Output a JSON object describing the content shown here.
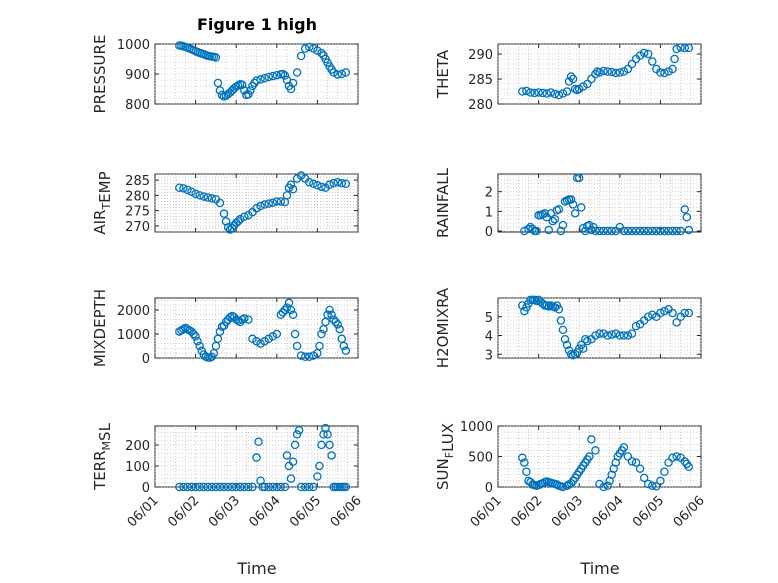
{
  "figure": {
    "title": "Figure 1 high",
    "xlabel": "Time"
  },
  "colors": {
    "marker": "#0072bd",
    "axis": "#262626",
    "grid": "#b0b0b0"
  },
  "chart_data": [
    {
      "type": "scatter",
      "id": "pressure",
      "title": "Figure 1 high",
      "ylabel_parts": [
        {
          "t": "PRESSURE"
        }
      ],
      "ylim": [
        800,
        1000
      ],
      "yticks": [
        800,
        900,
        1000
      ],
      "ytick_labels": [
        "800",
        "900",
        "1000"
      ],
      "xlim": [
        "06/01",
        "06/06"
      ],
      "xticks": [
        "06/01",
        "06/02",
        "06/03",
        "06/04",
        "06/05",
        "06/06"
      ],
      "xtick_labels_visible": false,
      "grid": true,
      "marker": "circle",
      "x": [
        1.6,
        1.65,
        1.7,
        1.75,
        1.8,
        1.85,
        1.9,
        1.95,
        2.0,
        2.05,
        2.1,
        2.15,
        2.2,
        2.25,
        2.3,
        2.35,
        2.4,
        2.45,
        2.5,
        2.55,
        2.6,
        2.65,
        2.7,
        2.75,
        2.8,
        2.85,
        2.9,
        2.95,
        3.0,
        3.05,
        3.1,
        3.15,
        3.2,
        3.25,
        3.3,
        3.35,
        3.4,
        3.45,
        3.5,
        3.6,
        3.7,
        3.8,
        3.9,
        4.0,
        4.1,
        4.15,
        4.2,
        4.25,
        4.3,
        4.35,
        4.4,
        4.5,
        4.6,
        4.7,
        4.8,
        4.9,
        5.0,
        5.1,
        5.15,
        5.2,
        5.25,
        5.3,
        5.35,
        5.4,
        5.5,
        5.6,
        5.7
      ],
      "y": [
        995,
        994,
        992,
        990,
        988,
        985,
        982,
        979,
        976,
        973,
        970,
        968,
        966,
        963,
        961,
        959,
        958,
        957,
        955,
        870,
        845,
        830,
        825,
        828,
        833,
        838,
        845,
        852,
        858,
        862,
        866,
        864,
        845,
        830,
        832,
        845,
        860,
        870,
        878,
        882,
        886,
        890,
        893,
        896,
        899,
        900,
        895,
        880,
        860,
        850,
        870,
        905,
        960,
        985,
        990,
        985,
        978,
        970,
        962,
        950,
        938,
        925,
        915,
        905,
        898,
        900,
        905
      ]
    },
    {
      "type": "scatter",
      "id": "theta",
      "ylabel_parts": [
        {
          "t": "THETA"
        }
      ],
      "ylim": [
        280,
        292
      ],
      "yticks": [
        280,
        285,
        290
      ],
      "ytick_labels": [
        "280",
        "285",
        "290"
      ],
      "xlim": [
        "06/01",
        "06/06"
      ],
      "xticks": [
        "06/01",
        "06/02",
        "06/03",
        "06/04",
        "06/05",
        "06/06"
      ],
      "xtick_labels_visible": false,
      "grid": true,
      "marker": "circle",
      "x": [
        1.6,
        1.7,
        1.8,
        1.9,
        2.0,
        2.1,
        2.2,
        2.3,
        2.4,
        2.5,
        2.6,
        2.7,
        2.75,
        2.8,
        2.85,
        2.9,
        2.95,
        3.0,
        3.1,
        3.2,
        3.3,
        3.4,
        3.45,
        3.5,
        3.6,
        3.7,
        3.8,
        3.9,
        4.0,
        4.1,
        4.2,
        4.3,
        4.4,
        4.5,
        4.6,
        4.7,
        4.8,
        4.9,
        5.0,
        5.1,
        5.2,
        5.3,
        5.35,
        5.4,
        5.5,
        5.6,
        5.7
      ],
      "y": [
        282.5,
        282.6,
        282.3,
        282.2,
        282.3,
        282.2,
        282.1,
        282.3,
        282.0,
        281.8,
        282.1,
        282.5,
        284.5,
        285.5,
        285.0,
        283.0,
        282.8,
        283.0,
        283.5,
        284.0,
        285.0,
        286.0,
        286.5,
        286.3,
        286.6,
        286.5,
        286.4,
        286.2,
        286.3,
        286.5,
        287.0,
        288.0,
        289.0,
        289.7,
        290.2,
        290.0,
        288.5,
        287.0,
        286.3,
        286.2,
        286.5,
        287.0,
        289.0,
        291.0,
        291.3,
        291.2,
        291.2
      ]
    },
    {
      "type": "scatter",
      "id": "air_temp",
      "ylabel_parts": [
        {
          "t": "AIR"
        },
        {
          "t": "T",
          "sub": true
        },
        {
          "t": "EMP"
        }
      ],
      "ylim": [
        268,
        287
      ],
      "yticks": [
        270,
        275,
        280,
        285
      ],
      "ytick_labels": [
        "270",
        "275",
        "280",
        "285"
      ],
      "xlim": [
        "06/01",
        "06/06"
      ],
      "xticks": [
        "06/01",
        "06/02",
        "06/03",
        "06/04",
        "06/05",
        "06/06"
      ],
      "xtick_labels_visible": false,
      "grid": true,
      "marker": "circle",
      "x": [
        1.6,
        1.7,
        1.8,
        1.9,
        2.0,
        2.1,
        2.2,
        2.3,
        2.4,
        2.5,
        2.6,
        2.7,
        2.75,
        2.8,
        2.85,
        2.9,
        2.95,
        3.0,
        3.05,
        3.1,
        3.2,
        3.3,
        3.4,
        3.5,
        3.6,
        3.7,
        3.8,
        3.9,
        4.0,
        4.1,
        4.2,
        4.25,
        4.3,
        4.35,
        4.4,
        4.5,
        4.6,
        4.7,
        4.8,
        4.9,
        5.0,
        5.1,
        5.2,
        5.3,
        5.4,
        5.5,
        5.6,
        5.7
      ],
      "y": [
        282.5,
        282.3,
        281.8,
        281.2,
        280.5,
        280.0,
        279.6,
        279.3,
        279.0,
        278.7,
        277.5,
        274.0,
        271.5,
        269.5,
        268.8,
        269.3,
        270.2,
        271.0,
        271.5,
        272.2,
        273.0,
        273.5,
        274.5,
        275.8,
        276.5,
        277.0,
        277.3,
        277.6,
        278.0,
        278.0,
        277.8,
        280.0,
        282.5,
        283.5,
        282.0,
        285.5,
        286.5,
        285.5,
        284.3,
        283.8,
        283.3,
        282.8,
        282.5,
        283.5,
        284.0,
        284.3,
        284.0,
        283.8
      ]
    },
    {
      "type": "scatter",
      "id": "rainfall",
      "ylabel_parts": [
        {
          "t": "RAINFALL"
        }
      ],
      "ylim": [
        -0.05,
        2.9
      ],
      "yticks": [
        0,
        1,
        2
      ],
      "ytick_labels": [
        "0",
        "1",
        "2"
      ],
      "xlim": [
        "06/01",
        "06/06"
      ],
      "xticks": [
        "06/01",
        "06/02",
        "06/03",
        "06/04",
        "06/05",
        "06/06"
      ],
      "xtick_labels_visible": false,
      "grid": true,
      "marker": "circle",
      "x": [
        1.65,
        1.75,
        1.8,
        1.85,
        1.9,
        1.95,
        2.0,
        2.05,
        2.1,
        2.15,
        2.2,
        2.25,
        2.3,
        2.35,
        2.4,
        2.45,
        2.5,
        2.55,
        2.6,
        2.65,
        2.7,
        2.75,
        2.8,
        2.85,
        2.9,
        2.95,
        3.0,
        3.05,
        3.1,
        3.15,
        3.2,
        3.25,
        3.3,
        3.35,
        3.4,
        3.5,
        3.6,
        3.7,
        3.8,
        3.9,
        4.0,
        4.1,
        4.2,
        4.3,
        4.4,
        4.5,
        4.6,
        4.7,
        4.8,
        4.9,
        5.0,
        5.1,
        5.2,
        5.3,
        5.4,
        5.5,
        5.6,
        5.65,
        5.7
      ],
      "y": [
        0,
        0.1,
        0.2,
        0.1,
        0,
        0,
        0.8,
        0.8,
        0.85,
        0.9,
        0.7,
        0.05,
        0.9,
        0.5,
        0.6,
        1.05,
        1.1,
        0,
        0.3,
        1.5,
        1.55,
        1.6,
        1.6,
        1.35,
        0.9,
        2.7,
        2.7,
        1.2,
        0.15,
        0,
        0.25,
        0.3,
        0.05,
        0.2,
        0,
        0,
        0,
        0,
        0,
        0,
        0.2,
        0,
        0,
        0,
        0,
        0,
        0,
        0,
        0,
        0,
        0,
        0,
        0,
        0,
        0,
        0,
        1.1,
        0.7,
        0.05
      ]
    },
    {
      "type": "scatter",
      "id": "mixdepth",
      "ylabel_parts": [
        {
          "t": "MIXDEPTH"
        }
      ],
      "ylim": [
        0,
        2500
      ],
      "yticks": [
        0,
        1000,
        2000
      ],
      "ytick_labels": [
        "0",
        "1000",
        "2000"
      ],
      "xlim": [
        "06/01",
        "06/06"
      ],
      "xticks": [
        "06/01",
        "06/02",
        "06/03",
        "06/04",
        "06/05",
        "06/06"
      ],
      "xtick_labels_visible": false,
      "grid": true,
      "marker": "circle",
      "x": [
        1.6,
        1.65,
        1.7,
        1.75,
        1.8,
        1.85,
        1.9,
        1.95,
        2.0,
        2.05,
        2.1,
        2.15,
        2.2,
        2.25,
        2.3,
        2.35,
        2.4,
        2.45,
        2.5,
        2.55,
        2.6,
        2.65,
        2.7,
        2.75,
        2.8,
        2.85,
        2.9,
        2.95,
        3.0,
        3.05,
        3.1,
        3.15,
        3.2,
        3.3,
        3.4,
        3.5,
        3.6,
        3.7,
        3.8,
        3.9,
        4.0,
        4.1,
        4.15,
        4.2,
        4.25,
        4.3,
        4.35,
        4.4,
        4.45,
        4.5,
        4.6,
        4.7,
        4.8,
        4.9,
        5.0,
        5.05,
        5.1,
        5.15,
        5.2,
        5.25,
        5.3,
        5.35,
        5.4,
        5.45,
        5.5,
        5.55,
        5.6,
        5.65,
        5.7
      ],
      "y": [
        1100,
        1150,
        1200,
        1250,
        1200,
        1150,
        1100,
        1000,
        900,
        700,
        500,
        300,
        150,
        50,
        20,
        10,
        50,
        200,
        500,
        800,
        1100,
        1300,
        1350,
        1500,
        1600,
        1700,
        1750,
        1700,
        1600,
        1550,
        1500,
        1600,
        1650,
        1600,
        800,
        700,
        600,
        700,
        800,
        900,
        1000,
        1800,
        1900,
        2000,
        2100,
        2300,
        2000,
        1800,
        1000,
        500,
        100,
        50,
        50,
        100,
        200,
        500,
        1000,
        1200,
        1500,
        1800,
        2000,
        1800,
        1600,
        1500,
        1400,
        1200,
        800,
        500,
        300
      ]
    },
    {
      "type": "scatter",
      "id": "h2omixra",
      "ylabel_parts": [
        {
          "t": "H2OMIXRA"
        }
      ],
      "ylim": [
        2.8,
        6.0
      ],
      "yticks": [
        3,
        4,
        5
      ],
      "ytick_labels": [
        "3",
        "4",
        "5"
      ],
      "xlim": [
        "06/01",
        "06/06"
      ],
      "xticks": [
        "06/01",
        "06/02",
        "06/03",
        "06/04",
        "06/05",
        "06/06"
      ],
      "xtick_labels_visible": false,
      "grid": true,
      "marker": "circle",
      "x": [
        1.6,
        1.65,
        1.7,
        1.75,
        1.8,
        1.85,
        1.9,
        1.95,
        2.0,
        2.05,
        2.1,
        2.15,
        2.2,
        2.25,
        2.3,
        2.35,
        2.4,
        2.45,
        2.5,
        2.55,
        2.6,
        2.65,
        2.7,
        2.75,
        2.8,
        2.85,
        2.9,
        2.95,
        3.0,
        3.05,
        3.1,
        3.15,
        3.2,
        3.3,
        3.4,
        3.5,
        3.6,
        3.7,
        3.8,
        3.9,
        4.0,
        4.1,
        4.2,
        4.3,
        4.4,
        4.5,
        4.6,
        4.7,
        4.8,
        4.9,
        5.0,
        5.1,
        5.2,
        5.3,
        5.4,
        5.5,
        5.6,
        5.7
      ],
      "y": [
        5.6,
        5.3,
        5.5,
        5.7,
        5.9,
        5.9,
        5.9,
        5.85,
        5.9,
        5.8,
        5.7,
        5.6,
        5.6,
        5.55,
        5.6,
        5.55,
        5.5,
        5.6,
        5.4,
        4.8,
        4.3,
        3.8,
        3.5,
        3.2,
        3.0,
        2.95,
        3.0,
        3.1,
        3.3,
        3.5,
        3.3,
        3.8,
        3.7,
        3.8,
        4.0,
        4.1,
        4.1,
        4.0,
        4.05,
        4.1,
        4.0,
        4.0,
        4.0,
        4.1,
        4.5,
        4.6,
        4.8,
        5.0,
        5.1,
        5.0,
        5.2,
        5.3,
        5.4,
        5.2,
        4.7,
        5.0,
        5.2,
        5.2
      ]
    },
    {
      "type": "scatter",
      "id": "terr_msl",
      "ylabel_parts": [
        {
          "t": "TERR"
        },
        {
          "t": "M",
          "sub": true
        },
        {
          "t": "SL"
        }
      ],
      "ylim": [
        0,
        290
      ],
      "yticks": [
        0,
        100,
        200
      ],
      "ytick_labels": [
        "0",
        "100",
        "200"
      ],
      "xlim": [
        "06/01",
        "06/06"
      ],
      "xticks": [
        "06/01",
        "06/02",
        "06/03",
        "06/04",
        "06/05",
        "06/06"
      ],
      "xtick_labels": [
        "06/01",
        "06/02",
        "06/03",
        "06/04",
        "06/05",
        "06/06"
      ],
      "xtick_labels_visible": true,
      "grid": true,
      "marker": "circle",
      "x": [
        1.6,
        1.7,
        1.8,
        1.9,
        2.0,
        2.1,
        2.2,
        2.3,
        2.4,
        2.5,
        2.6,
        2.7,
        2.8,
        2.9,
        3.0,
        3.1,
        3.2,
        3.3,
        3.4,
        3.5,
        3.55,
        3.6,
        3.65,
        3.7,
        3.8,
        3.9,
        4.0,
        4.1,
        4.2,
        4.25,
        4.3,
        4.35,
        4.4,
        4.45,
        4.5,
        4.55,
        4.6,
        4.7,
        4.8,
        4.9,
        5.0,
        5.05,
        5.1,
        5.15,
        5.2,
        5.25,
        5.3,
        5.35,
        5.4,
        5.45,
        5.5,
        5.55,
        5.6,
        5.65,
        5.7
      ],
      "y": [
        0,
        0,
        0,
        0,
        0,
        0,
        0,
        0,
        0,
        0,
        0,
        0,
        0,
        0,
        0,
        0,
        0,
        0,
        0,
        140,
        215,
        30,
        0,
        0,
        0,
        0,
        0,
        0,
        0,
        150,
        100,
        40,
        120,
        200,
        250,
        270,
        0,
        0,
        0,
        0,
        50,
        100,
        200,
        250,
        280,
        250,
        200,
        150,
        0,
        0,
        0,
        0,
        0,
        0,
        0
      ]
    },
    {
      "type": "scatter",
      "id": "sun_flux",
      "ylabel_parts": [
        {
          "t": "SUN"
        },
        {
          "t": "F",
          "sub": true
        },
        {
          "t": "LUX"
        }
      ],
      "ylim": [
        0,
        1000
      ],
      "yticks": [
        0,
        500,
        1000
      ],
      "ytick_labels": [
        "0",
        "500",
        "1000"
      ],
      "xlim": [
        "06/01",
        "06/06"
      ],
      "xticks": [
        "06/01",
        "06/02",
        "06/03",
        "06/04",
        "06/05",
        "06/06"
      ],
      "xtick_labels": [
        "06/01",
        "06/02",
        "06/03",
        "06/04",
        "06/05",
        "06/06"
      ],
      "xtick_labels_visible": true,
      "grid": true,
      "marker": "circle",
      "x": [
        1.6,
        1.65,
        1.7,
        1.75,
        1.8,
        1.85,
        1.9,
        1.95,
        2.0,
        2.05,
        2.1,
        2.15,
        2.2,
        2.25,
        2.3,
        2.35,
        2.4,
        2.45,
        2.5,
        2.55,
        2.6,
        2.7,
        2.75,
        2.8,
        2.85,
        2.9,
        2.95,
        3.0,
        3.05,
        3.1,
        3.15,
        3.2,
        3.25,
        3.3,
        3.4,
        3.5,
        3.6,
        3.7,
        3.75,
        3.8,
        3.85,
        3.9,
        3.95,
        4.0,
        4.05,
        4.1,
        4.2,
        4.3,
        4.4,
        4.5,
        4.6,
        4.7,
        4.8,
        4.9,
        5.0,
        5.1,
        5.2,
        5.3,
        5.4,
        5.5,
        5.6,
        5.65,
        5.7
      ],
      "y": [
        480,
        400,
        250,
        100,
        80,
        40,
        30,
        20,
        30,
        50,
        60,
        80,
        90,
        80,
        70,
        60,
        50,
        40,
        20,
        10,
        0,
        20,
        40,
        60,
        100,
        150,
        200,
        250,
        300,
        350,
        400,
        450,
        500,
        780,
        600,
        50,
        0,
        20,
        100,
        200,
        300,
        400,
        500,
        550,
        600,
        650,
        500,
        420,
        400,
        300,
        150,
        50,
        20,
        10,
        100,
        250,
        400,
        480,
        500,
        480,
        420,
        380,
        330
      ]
    }
  ]
}
